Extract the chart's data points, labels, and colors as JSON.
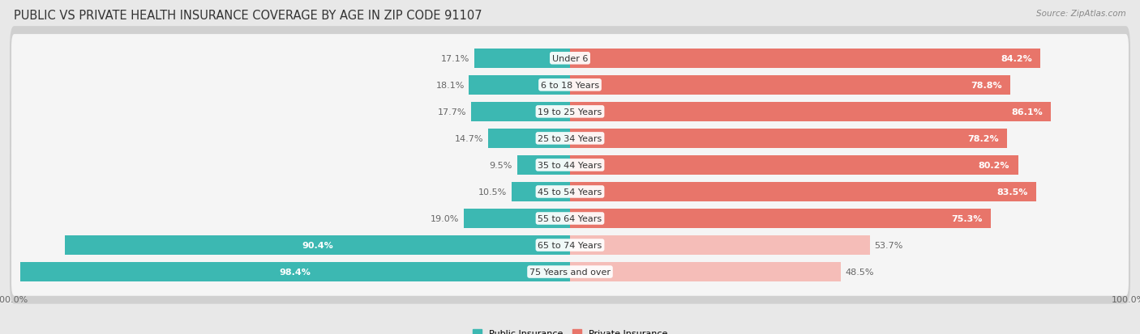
{
  "title": "PUBLIC VS PRIVATE HEALTH INSURANCE COVERAGE BY AGE IN ZIP CODE 91107",
  "source": "Source: ZipAtlas.com",
  "categories": [
    "Under 6",
    "6 to 18 Years",
    "19 to 25 Years",
    "25 to 34 Years",
    "35 to 44 Years",
    "45 to 54 Years",
    "55 to 64 Years",
    "65 to 74 Years",
    "75 Years and over"
  ],
  "public_values": [
    17.1,
    18.1,
    17.7,
    14.7,
    9.5,
    10.5,
    19.0,
    90.4,
    98.4
  ],
  "private_values": [
    84.2,
    78.8,
    86.1,
    78.2,
    80.2,
    83.5,
    75.3,
    53.7,
    48.5
  ],
  "public_color": "#3cb8b2",
  "private_color": "#e8756a",
  "public_color_light": "#b2dedd",
  "private_color_light": "#f5bdb8",
  "background_color": "#e8e8e8",
  "bar_bg_color": "#f5f5f5",
  "bar_row_shadow": "#d0d0d0",
  "max_value": 100.0,
  "legend_labels": [
    "Public Insurance",
    "Private Insurance"
  ],
  "title_fontsize": 10.5,
  "label_fontsize": 8,
  "tick_fontsize": 8,
  "source_fontsize": 7.5
}
